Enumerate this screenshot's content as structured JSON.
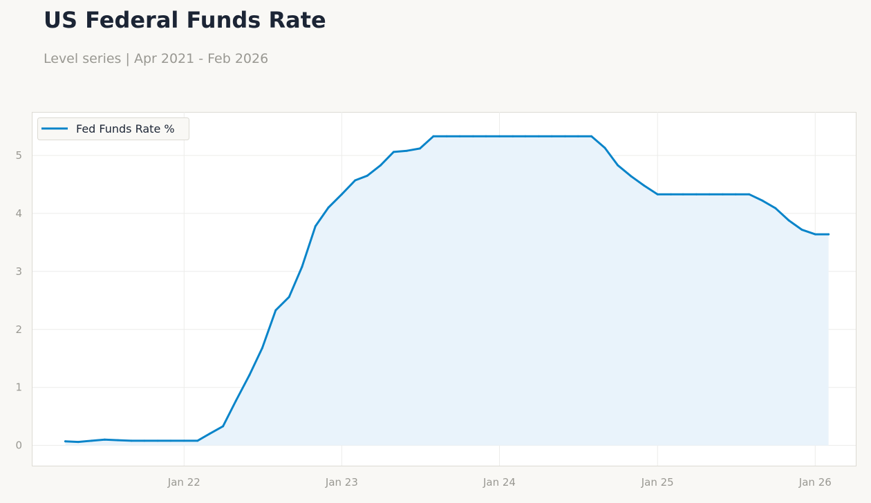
{
  "header": {
    "title": "US Federal Funds Rate",
    "subtitle": "Level series | Apr 2021 - Feb 2026"
  },
  "colors": {
    "line": "#0984c9",
    "fill": "#e9f3fb",
    "grid": "#ececea",
    "axis_text": "#999892",
    "background": "#f9f8f5",
    "plot_background": "#ffffff"
  },
  "chart_data": {
    "type": "area",
    "title": "US Federal Funds Rate",
    "subtitle": "Level series | Apr 2021 - Feb 2026",
    "xlabel": "",
    "ylabel": "",
    "grid": true,
    "legend_position": "top-left",
    "xlim": [
      "2021-01-15",
      "2026-04-05"
    ],
    "ylim": [
      -0.35,
      5.75
    ],
    "y_ticks": [
      0,
      1,
      2,
      3,
      4,
      5
    ],
    "x_ticks": [
      {
        "date": "2022-01-01",
        "label": "Jan 22"
      },
      {
        "date": "2023-01-01",
        "label": "Jan 23"
      },
      {
        "date": "2024-01-01",
        "label": "Jan 24"
      },
      {
        "date": "2025-01-01",
        "label": "Jan 25"
      },
      {
        "date": "2026-01-01",
        "label": "Jan 26"
      }
    ],
    "series": [
      {
        "name": "Fed Funds Rate %",
        "x": [
          "2021-04-01",
          "2021-05-01",
          "2021-06-01",
          "2021-07-01",
          "2021-08-01",
          "2021-09-01",
          "2021-10-01",
          "2021-11-01",
          "2021-12-01",
          "2022-01-01",
          "2022-02-01",
          "2022-03-01",
          "2022-04-01",
          "2022-05-01",
          "2022-06-01",
          "2022-07-01",
          "2022-08-01",
          "2022-09-01",
          "2022-10-01",
          "2022-11-01",
          "2022-12-01",
          "2023-01-01",
          "2023-02-01",
          "2023-03-01",
          "2023-04-01",
          "2023-05-01",
          "2023-06-01",
          "2023-07-01",
          "2023-08-01",
          "2023-09-01",
          "2023-10-01",
          "2023-11-01",
          "2023-12-01",
          "2024-01-01",
          "2024-02-01",
          "2024-03-01",
          "2024-04-01",
          "2024-05-01",
          "2024-06-01",
          "2024-07-01",
          "2024-08-01",
          "2024-09-01",
          "2024-10-01",
          "2024-11-01",
          "2024-12-01",
          "2025-01-01",
          "2025-02-01",
          "2025-03-01",
          "2025-04-01",
          "2025-05-01",
          "2025-06-01",
          "2025-07-01",
          "2025-08-01",
          "2025-09-01",
          "2025-10-01",
          "2025-11-01",
          "2025-12-01",
          "2026-01-01",
          "2026-02-01"
        ],
        "values": [
          0.07,
          0.06,
          0.08,
          0.1,
          0.09,
          0.08,
          0.08,
          0.08,
          0.08,
          0.08,
          0.08,
          0.2,
          0.33,
          0.77,
          1.21,
          1.68,
          2.33,
          2.56,
          3.08,
          3.78,
          4.1,
          4.33,
          4.57,
          4.65,
          4.83,
          5.06,
          5.08,
          5.12,
          5.33,
          5.33,
          5.33,
          5.33,
          5.33,
          5.33,
          5.33,
          5.33,
          5.33,
          5.33,
          5.33,
          5.33,
          5.33,
          5.13,
          4.83,
          4.64,
          4.48,
          4.33,
          4.33,
          4.33,
          4.33,
          4.33,
          4.33,
          4.33,
          4.33,
          4.22,
          4.09,
          3.88,
          3.72,
          3.64,
          3.64
        ]
      }
    ]
  }
}
